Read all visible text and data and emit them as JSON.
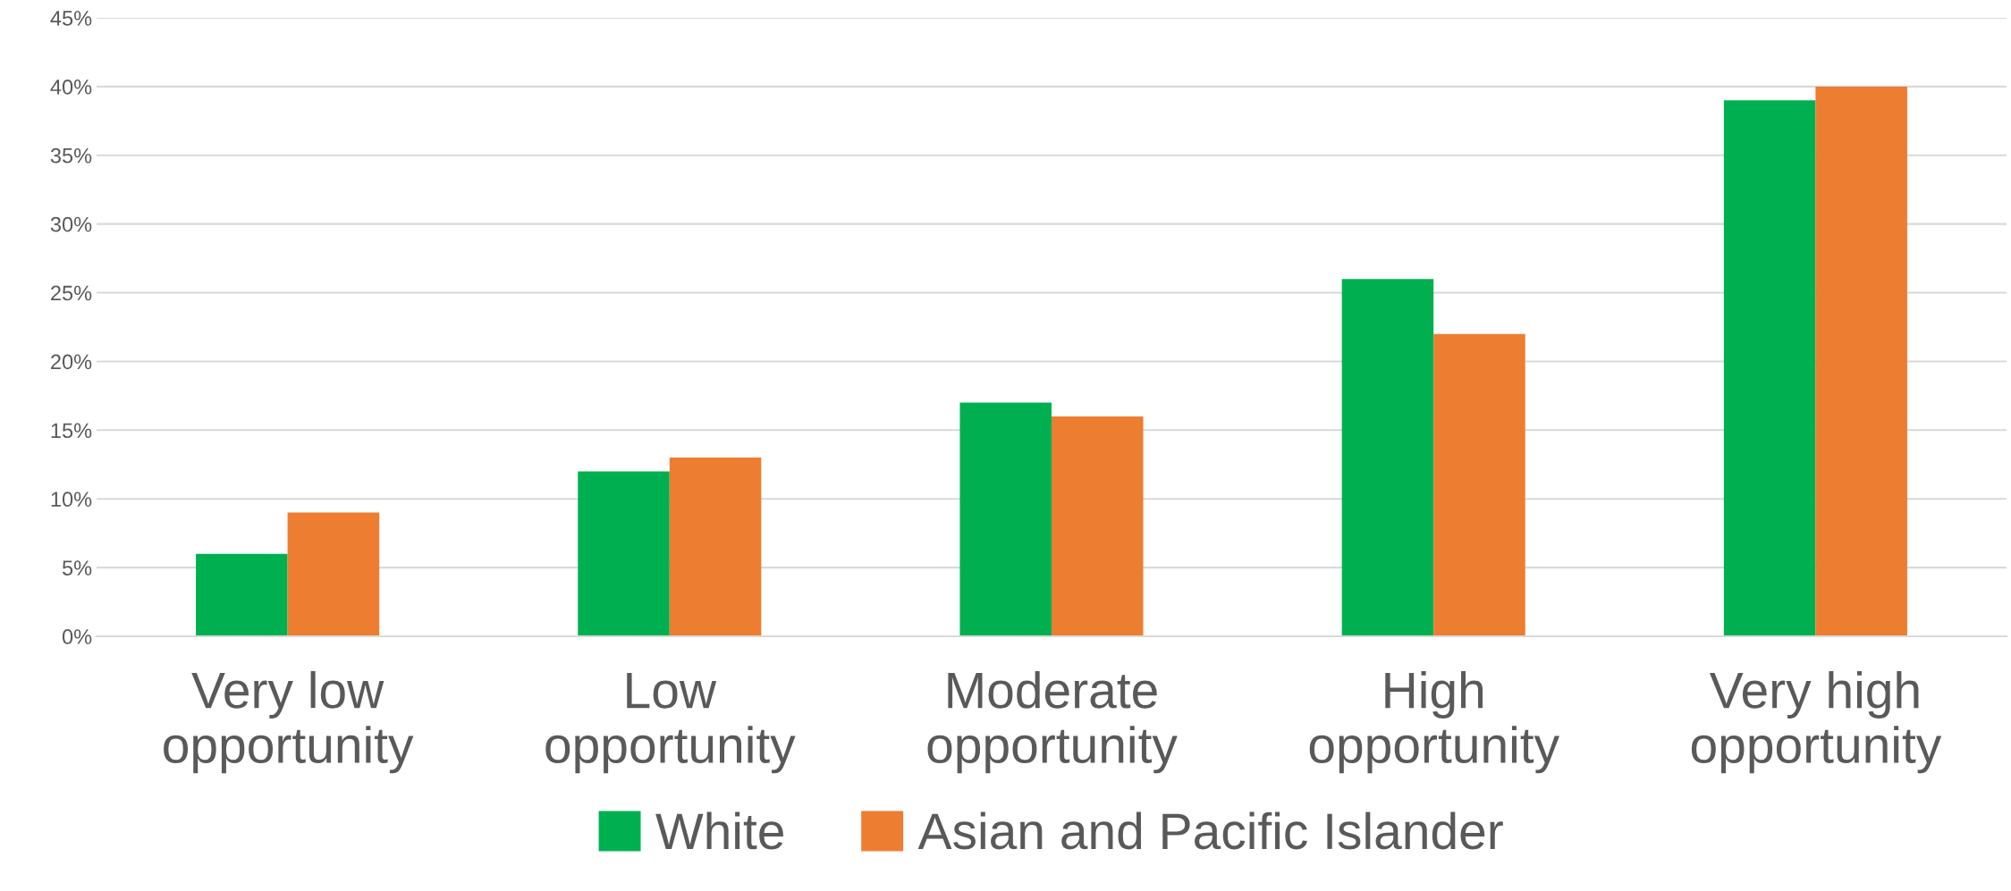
{
  "chart_data": {
    "type": "bar",
    "categories": [
      "Very low\nopportunity",
      "Low\nopportunity",
      "Moderate\nopportunity",
      "High\nopportunity",
      "Very high\nopportunity"
    ],
    "series": [
      {
        "name": "White",
        "color": "#00b050",
        "values": [
          6,
          12,
          17,
          26,
          39
        ]
      },
      {
        "name": "Asian and Pacific Islander",
        "color": "#ed7d31",
        "values": [
          9,
          13,
          16,
          22,
          40
        ]
      }
    ],
    "ylim": [
      0,
      45
    ],
    "yticks": [
      {
        "value": 0,
        "label": "0%"
      },
      {
        "value": 5,
        "label": "5%"
      },
      {
        "value": 10,
        "label": "10%"
      },
      {
        "value": 15,
        "label": "15%"
      },
      {
        "value": 20,
        "label": "20%"
      },
      {
        "value": 25,
        "label": "25%"
      },
      {
        "value": 30,
        "label": "30%"
      },
      {
        "value": 35,
        "label": "35%"
      },
      {
        "value": 40,
        "label": "40%"
      },
      {
        "value": 45,
        "label": "45%"
      }
    ],
    "grid": "y",
    "legend": "bottom"
  }
}
